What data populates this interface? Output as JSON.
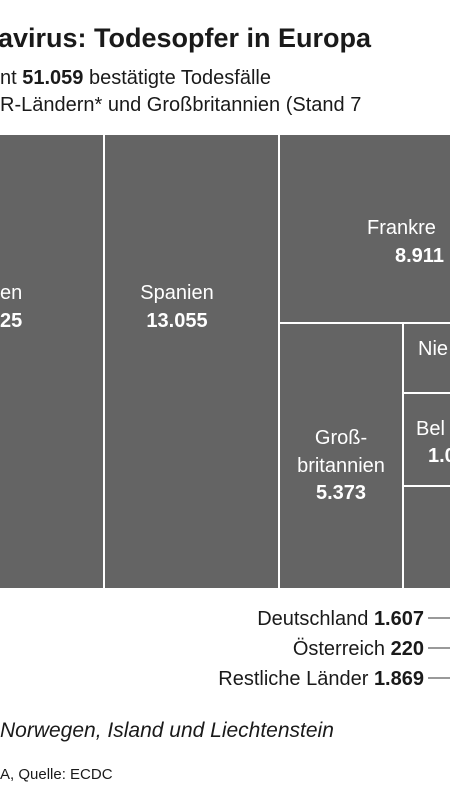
{
  "header": {
    "title": "avirus: Todesopfer in Europa",
    "subtitle_prefix": "nt",
    "total": "51.059",
    "subtitle_suffix": "bestätigte Todesfälle",
    "subtitle_line2": "R-Ländern* und Großbritannien (Stand 7"
  },
  "tiles": [
    {
      "label": "en",
      "value": "25"
    },
    {
      "label": "Spanien",
      "value": "13.055"
    },
    {
      "label": "Frankre",
      "value": "8.911"
    },
    {
      "label_lines": [
        "Groß-",
        "britannien"
      ],
      "value": "5.373"
    },
    {
      "label": "Nie"
    },
    {
      "label": "Bel",
      "value": "1.0"
    }
  ],
  "small": [
    {
      "label": "Deutschland",
      "value": "1.607"
    },
    {
      "label": "Österreich",
      "value": "220"
    },
    {
      "label": "Restliche Länder",
      "value": "1.869"
    }
  ],
  "footnote": "Norwegen, Island und Liechtenstein",
  "source": "A, Quelle: ECDC"
}
